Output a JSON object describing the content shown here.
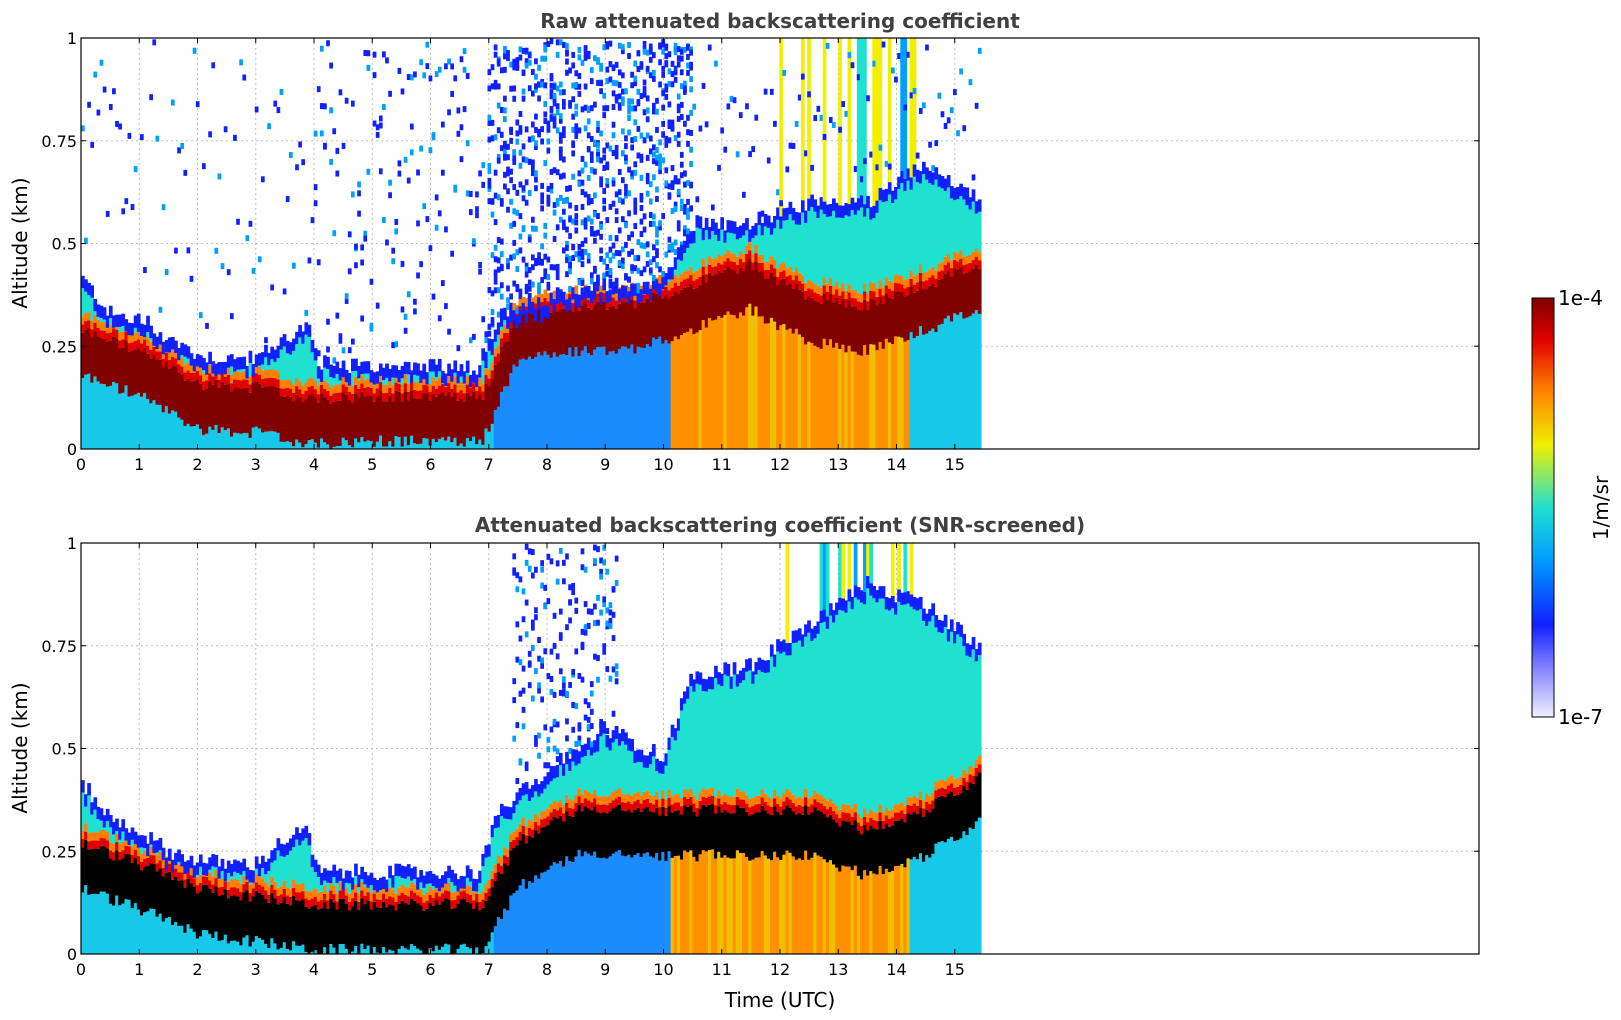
{
  "chart_data": [
    {
      "type": "heatmap",
      "title": "Raw attenuated backscattering coefficient",
      "xlabel": "",
      "ylabel": "Altitude (km)",
      "xlim": [
        0,
        24
      ],
      "ylim": [
        0,
        1
      ],
      "xticks": [
        "0",
        "1",
        "2",
        "3",
        "4",
        "5",
        "6",
        "7",
        "8",
        "9",
        "10",
        "11",
        "12",
        "13",
        "14",
        "15"
      ],
      "yticks": [
        "0",
        "0.25",
        "0.5",
        "0.75",
        "1"
      ],
      "grid": true,
      "data_end_time": 15.45,
      "layer_top_km": [
        {
          "t": 0,
          "z": 0.42
        },
        {
          "t": 0.5,
          "z": 0.33
        },
        {
          "t": 1,
          "z": 0.31
        },
        {
          "t": 1.5,
          "z": 0.27
        },
        {
          "t": 2,
          "z": 0.23
        },
        {
          "t": 2.5,
          "z": 0.22
        },
        {
          "t": 3,
          "z": 0.22
        },
        {
          "t": 3.5,
          "z": 0.27
        },
        {
          "t": 3.9,
          "z": 0.3
        },
        {
          "t": 4.05,
          "z": 0.21
        },
        {
          "t": 5,
          "z": 0.2
        },
        {
          "t": 6,
          "z": 0.2
        },
        {
          "t": 6.8,
          "z": 0.2
        },
        {
          "t": 7.2,
          "z": 0.32
        },
        {
          "t": 8,
          "z": 0.36
        },
        {
          "t": 9,
          "z": 0.4
        },
        {
          "t": 10,
          "z": 0.4
        },
        {
          "t": 10.5,
          "z": 0.55
        },
        {
          "t": 11.5,
          "z": 0.55
        },
        {
          "t": 12.5,
          "z": 0.6
        },
        {
          "t": 13.5,
          "z": 0.6
        },
        {
          "t": 14.5,
          "z": 0.7
        },
        {
          "t": 15.45,
          "z": 0.6
        }
      ],
      "max_backscatter_km": [
        {
          "t": 0,
          "z": 0.24
        },
        {
          "t": 1,
          "z": 0.19
        },
        {
          "t": 2,
          "z": 0.11
        },
        {
          "t": 3,
          "z": 0.1
        },
        {
          "t": 4,
          "z": 0.07
        },
        {
          "t": 5,
          "z": 0.08
        },
        {
          "t": 6,
          "z": 0.08
        },
        {
          "t": 6.9,
          "z": 0.08
        },
        {
          "t": 7.5,
          "z": 0.28
        },
        {
          "t": 8.5,
          "z": 0.3
        },
        {
          "t": 9.5,
          "z": 0.3
        },
        {
          "t": 10.5,
          "z": 0.35
        },
        {
          "t": 11.5,
          "z": 0.4
        },
        {
          "t": 12.5,
          "z": 0.32
        },
        {
          "t": 13.5,
          "z": 0.3
        },
        {
          "t": 14.5,
          "z": 0.35
        },
        {
          "t": 15.45,
          "z": 0.4
        }
      ]
    },
    {
      "type": "heatmap",
      "title": "Attenuated backscattering coefficient (SNR-screened)",
      "xlabel": "Time (UTC)",
      "ylabel": "Altitude (km)",
      "xlim": [
        0,
        24
      ],
      "ylim": [
        0,
        1
      ],
      "xticks": [
        "0",
        "1",
        "2",
        "3",
        "4",
        "5",
        "6",
        "7",
        "8",
        "9",
        "10",
        "11",
        "12",
        "13",
        "14",
        "15"
      ],
      "yticks": [
        "0",
        "0.25",
        "0.5",
        "0.75",
        "1"
      ],
      "grid": true,
      "data_end_time": 15.45,
      "layer_top_km": [
        {
          "t": 0,
          "z": 0.42
        },
        {
          "t": 0.5,
          "z": 0.33
        },
        {
          "t": 1,
          "z": 0.3
        },
        {
          "t": 1.5,
          "z": 0.25
        },
        {
          "t": 2,
          "z": 0.23
        },
        {
          "t": 2.5,
          "z": 0.22
        },
        {
          "t": 3,
          "z": 0.22
        },
        {
          "t": 3.5,
          "z": 0.28
        },
        {
          "t": 3.9,
          "z": 0.3
        },
        {
          "t": 4.05,
          "z": 0.2
        },
        {
          "t": 5,
          "z": 0.2
        },
        {
          "t": 6,
          "z": 0.2
        },
        {
          "t": 6.8,
          "z": 0.2
        },
        {
          "t": 7.2,
          "z": 0.35
        },
        {
          "t": 8,
          "z": 0.45
        },
        {
          "t": 9,
          "z": 0.55
        },
        {
          "t": 10,
          "z": 0.48
        },
        {
          "t": 10.5,
          "z": 0.68
        },
        {
          "t": 11.5,
          "z": 0.7
        },
        {
          "t": 12.5,
          "z": 0.8
        },
        {
          "t": 13.5,
          "z": 0.9
        },
        {
          "t": 14.5,
          "z": 0.85
        },
        {
          "t": 15.45,
          "z": 0.75
        }
      ],
      "max_backscatter_km": [
        {
          "t": 0,
          "z": 0.22
        },
        {
          "t": 1,
          "z": 0.17
        },
        {
          "t": 2,
          "z": 0.11
        },
        {
          "t": 3,
          "z": 0.09
        },
        {
          "t": 4,
          "z": 0.07
        },
        {
          "t": 5,
          "z": 0.07
        },
        {
          "t": 6,
          "z": 0.07
        },
        {
          "t": 6.9,
          "z": 0.07
        },
        {
          "t": 7.5,
          "z": 0.22
        },
        {
          "t": 8.5,
          "z": 0.3
        },
        {
          "t": 9.5,
          "z": 0.3
        },
        {
          "t": 10.5,
          "z": 0.3
        },
        {
          "t": 11.5,
          "z": 0.3
        },
        {
          "t": 12.5,
          "z": 0.3
        },
        {
          "t": 13.5,
          "z": 0.25
        },
        {
          "t": 14.5,
          "z": 0.3
        },
        {
          "t": 15.45,
          "z": 0.38
        }
      ]
    }
  ],
  "colorbar": {
    "label": "1/m/sr",
    "min_label": "1e-7",
    "max_label": "1e-4",
    "scale": "log",
    "colormap": "jet",
    "colors": [
      "#f0f0ff",
      "#1020ff",
      "#00a0ff",
      "#20e0d0",
      "#f0f000",
      "#ff8000",
      "#e00000",
      "#800000"
    ]
  },
  "colors": {
    "background": "#ffffff",
    "title": "#404040",
    "grid": "#c0c0c0",
    "saturated": "#000000"
  }
}
